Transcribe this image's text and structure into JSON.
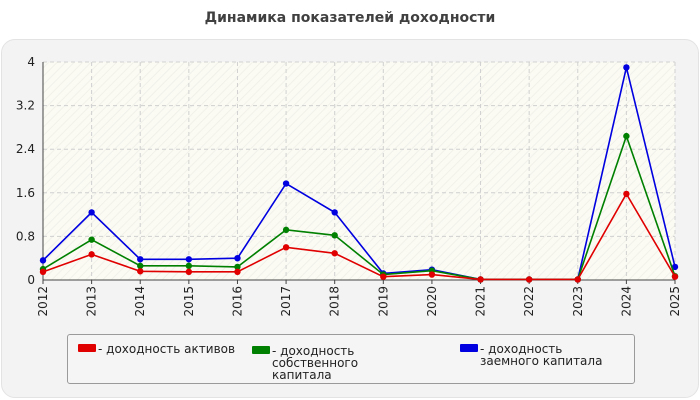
{
  "chart_data": {
    "type": "line",
    "title": "Динамика показателей доходности",
    "categories": [
      "2012",
      "2013",
      "2014",
      "2015",
      "2016",
      "2017",
      "2018",
      "2019",
      "2020",
      "2021",
      "2022",
      "2023",
      "2024",
      "2025"
    ],
    "ylim": [
      0,
      4
    ],
    "yticks": [
      "0",
      "0.8",
      "1.6",
      "2.4",
      "3.2",
      "4"
    ],
    "grid": true,
    "legend_position": "bottom",
    "series": [
      {
        "name": "- доходность активов",
        "color": "#e00000",
        "values": [
          0.15,
          0.47,
          0.16,
          0.15,
          0.15,
          0.6,
          0.49,
          0.06,
          0.1,
          0.01,
          0.01,
          0.01,
          1.58,
          0.06
        ]
      },
      {
        "name": "- доходность собственного капитала",
        "color": "#008000",
        "values": [
          0.2,
          0.74,
          0.26,
          0.26,
          0.24,
          0.92,
          0.82,
          0.1,
          0.17,
          0.01,
          0.01,
          0.01,
          2.64,
          0.07
        ]
      },
      {
        "name": "- доходность заемного капитала",
        "color": "#0000e0",
        "values": [
          0.36,
          1.24,
          0.38,
          0.38,
          0.4,
          1.77,
          1.24,
          0.12,
          0.19,
          0.01,
          0.01,
          0.01,
          3.9,
          0.24
        ]
      }
    ]
  }
}
